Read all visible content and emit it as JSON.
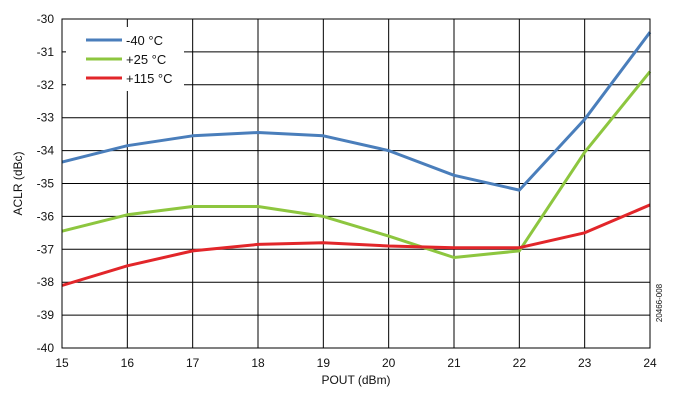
{
  "chart_data": {
    "type": "line",
    "title": "",
    "xlabel": "POUT (dBm)",
    "ylabel": "ACLR (dBc)",
    "x": [
      15,
      16,
      17,
      18,
      19,
      20,
      21,
      22,
      23,
      24
    ],
    "xlim": [
      15,
      24
    ],
    "ylim": [
      -40,
      -30
    ],
    "xticks": [
      "15",
      "16",
      "17",
      "18",
      "19",
      "20",
      "21",
      "22",
      "23",
      "24"
    ],
    "yticks": [
      "-30",
      "-31",
      "-32",
      "-33",
      "-34",
      "-35",
      "-36",
      "-37",
      "-38",
      "-39",
      "-40"
    ],
    "grid": true,
    "legend_position": "top-left",
    "series": [
      {
        "name": "-40 °C",
        "color": "#4a7ebb",
        "values": [
          -34.35,
          -33.85,
          -33.55,
          -33.45,
          -33.55,
          -34.0,
          -34.75,
          -35.2,
          -33.05,
          -30.4
        ]
      },
      {
        "name": "+25 °C",
        "color": "#8dc63f",
        "values": [
          -36.45,
          -35.95,
          -35.7,
          -35.7,
          -36.0,
          -36.6,
          -37.25,
          -37.05,
          -34.05,
          -31.6
        ]
      },
      {
        "name": "+115 °C",
        "color": "#e2262a",
        "values": [
          -38.1,
          -37.5,
          -37.05,
          -36.85,
          -36.8,
          -36.9,
          -36.95,
          -36.95,
          -36.5,
          -35.65
        ]
      }
    ],
    "side_label": "20466-008"
  }
}
